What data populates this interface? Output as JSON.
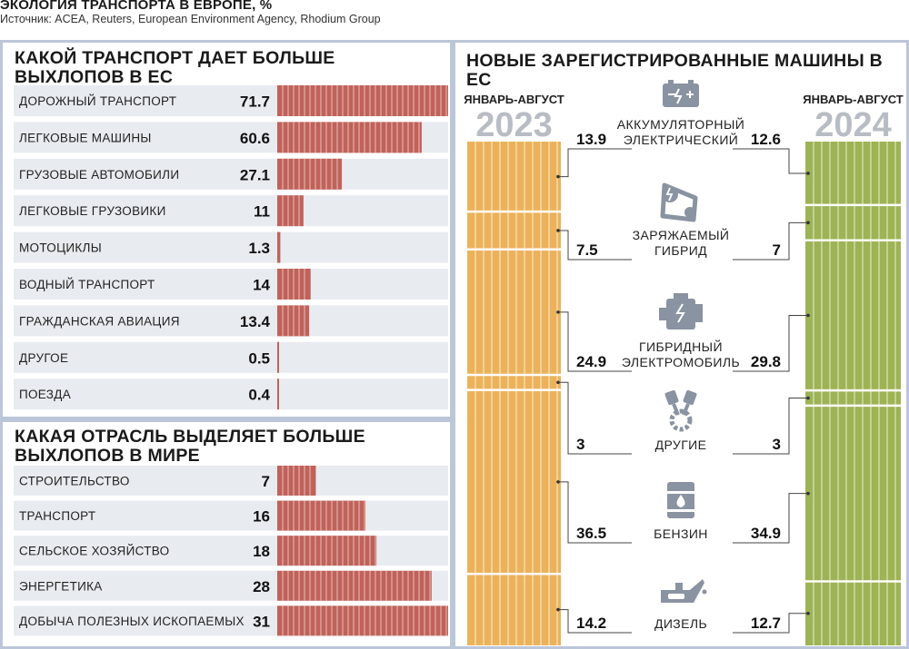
{
  "header": {
    "title": "ЭКОЛОГИЯ ТРАНСПОРТА В ЕВРОПЕ, %",
    "source": "Источник: ACEA, Reuters, European Environment Agency, Rhodium Group"
  },
  "colors": {
    "bar_red": "#c0625a",
    "bar_orange": "#ecb25a",
    "bar_green": "#9db354",
    "panel_border": "#bcc6d9",
    "row_bg": "#e8ebf0"
  },
  "chart_data": [
    {
      "type": "bar",
      "title": "КАКОЙ ТРАНСПОРТ ДАЕТ БОЛЬШЕ ВЫХЛОПОВ В ЕС",
      "categories": [
        "ДОРОЖНЫЙ ТРАНСПОРТ",
        "ЛЕГКОВЫЕ МАШИНЫ",
        "ГРУЗОВЫЕ АВТОМОБИЛИ",
        "ЛЕГКОВЫЕ ГРУЗОВИКИ",
        "МОТОЦИКЛЫ",
        "ВОДНЫЙ ТРАНСПОРТ",
        "ГРАЖДАНСКАЯ АВИАЦИЯ",
        "ДРУГОЕ",
        "ПОЕЗДА"
      ],
      "values": [
        71.7,
        60.6,
        27.1,
        11,
        1.3,
        14,
        13.4,
        0.5,
        0.4
      ],
      "labels": [
        "71.7",
        "60.6",
        "27.1",
        "11",
        "1.3",
        "14",
        "13.4",
        "0.5",
        "0.4"
      ],
      "xlim": [
        0,
        71.7
      ]
    },
    {
      "type": "bar",
      "title": "КАКАЯ ОТРАСЛЬ ВЫДЕЛЯЕТ БОЛЬШЕ ВЫХЛОПОВ В МИРЕ",
      "categories": [
        "СТРОИТЕЛЬСТВО",
        "ТРАНСПОРТ",
        "СЕЛЬСКОЕ ХОЗЯЙСТВО",
        "ЭНЕРГЕТИКА",
        "ДОБЫЧА ПОЛЕЗНЫХ ИСКОПАЕМЫХ"
      ],
      "values": [
        7,
        16,
        18,
        28,
        31
      ],
      "labels": [
        "7",
        "16",
        "18",
        "28",
        "31"
      ],
      "xlim": [
        0,
        31
      ]
    },
    {
      "type": "bar",
      "stacked": true,
      "title": "НОВЫЕ ЗАРЕГИСТРИРОВАННЫЕ МАШИНЫ В ЕС",
      "categories": [
        "АККУМУЛЯТОРНЫЙ ЭЛЕКТРИЧЕСКИЙ",
        "ЗАРЯЖАЕМЫЙ ГИБРИД",
        "ГИБРИДНЫЙ ЭЛЕКТРОМОБИЛЬ",
        "ДРУГИЕ",
        "БЕНЗИН",
        "ДИЗЕЛЬ"
      ],
      "category_lines": [
        [
          "АККУМУЛЯТОРНЫЙ",
          "ЭЛЕКТРИЧЕСКИЙ"
        ],
        [
          "ЗАРЯЖАЕМЫЙ",
          "ГИБРИД"
        ],
        [
          "ГИБРИДНЫЙ",
          "ЭЛЕКТРОМОБИЛЬ"
        ],
        [
          "ДРУГИЕ"
        ],
        [
          "БЕНЗИН"
        ],
        [
          "ДИЗЕЛЬ"
        ]
      ],
      "icons": [
        "battery-icon",
        "charging-belt-icon",
        "engine-icon",
        "pistons-gear-icon",
        "fuel-barrel-icon",
        "oil-can-icon"
      ],
      "series": [
        {
          "period": "ЯНВАРЬ-АВГУСТ",
          "year": "2023",
          "values": [
            13.9,
            7.5,
            24.9,
            3,
            36.5,
            14.2
          ],
          "labels": [
            "13.9",
            "7.5",
            "24.9",
            "3",
            "36.5",
            "14.2"
          ],
          "color": "#ecb25a"
        },
        {
          "period": "ЯНВАРЬ-АВГУСТ",
          "year": "2024",
          "values": [
            12.6,
            7,
            29.8,
            3,
            34.9,
            12.7
          ],
          "labels": [
            "12.6",
            "7",
            "29.8",
            "3",
            "34.9",
            "12.7"
          ],
          "color": "#9db354"
        }
      ]
    }
  ]
}
